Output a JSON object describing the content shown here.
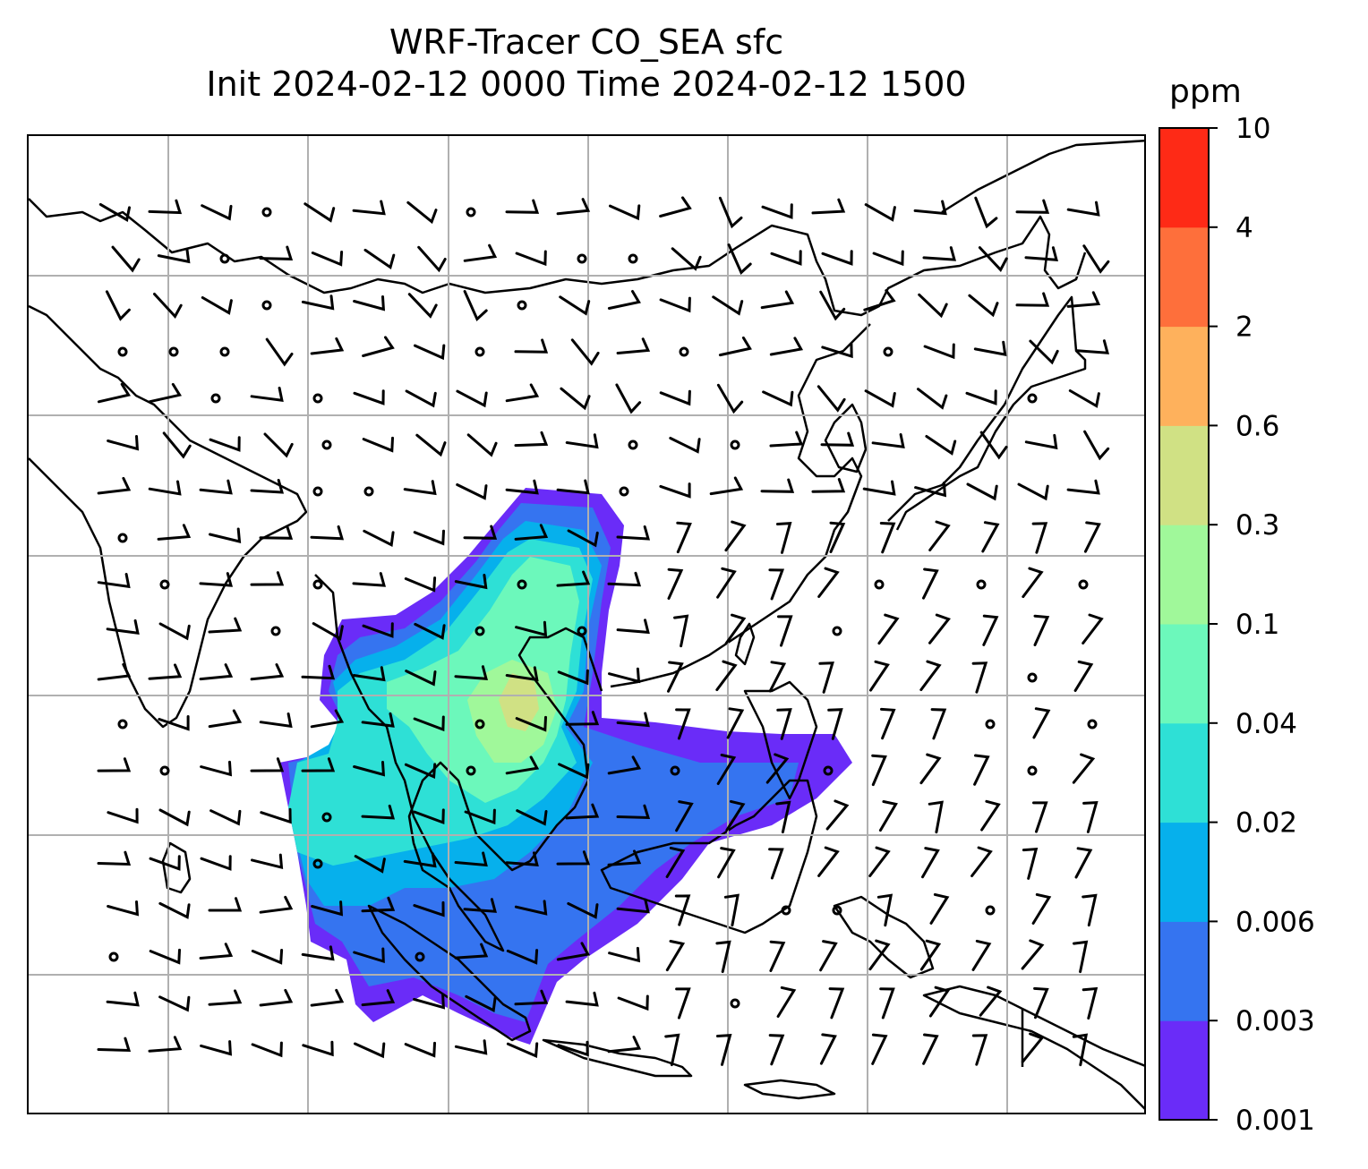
{
  "title": {
    "line1": "WRF-Tracer CO_SEA sfc",
    "line2": "Init 2024-02-12 0000 Time 2024-02-12 1500"
  },
  "colorbar": {
    "unit": "ppm",
    "levels": [
      "0.001",
      "0.003",
      "0.006",
      "0.02",
      "0.04",
      "0.1",
      "0.3",
      "0.6",
      "2",
      "4",
      "10"
    ],
    "colors": [
      "#6a2cf8",
      "#3574f0",
      "#06b0ec",
      "#2ee0d6",
      "#6cf8bb",
      "#a0f89a",
      "#d0e184",
      "#feb15c",
      "#fe6f3b",
      "#fe2a16"
    ]
  },
  "map": {
    "projection_grid": true,
    "gridline_color": "#b0b0b0",
    "coastline_color": "#000000",
    "overlay": "wind barbs and calm-wind circles",
    "tracer_field": "CO_SEA surface concentration"
  }
}
